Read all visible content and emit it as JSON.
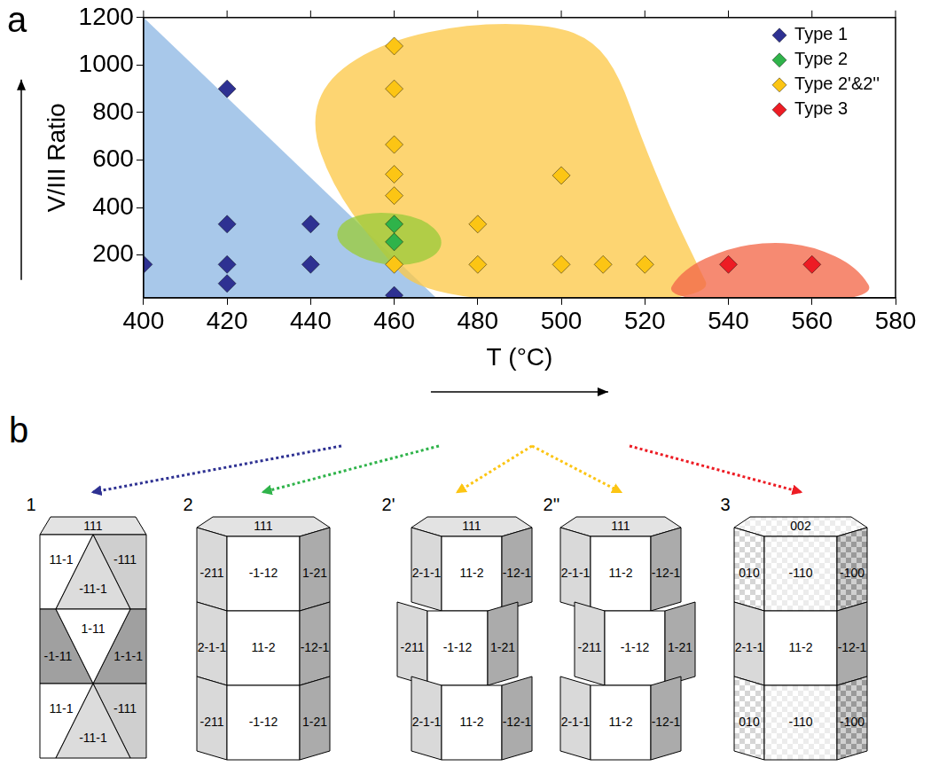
{
  "chart_data": {
    "type": "scatter",
    "panel_label": "a",
    "x_label": "T (°C)",
    "y_label": "V/III Ratio",
    "xlim": [
      400,
      580
    ],
    "xticks": [
      400,
      420,
      440,
      460,
      480,
      500,
      520,
      540,
      560,
      580
    ],
    "ylim": [
      20,
      1200
    ],
    "yticks": [
      200,
      400,
      600,
      800,
      1000,
      1200
    ],
    "grid": false,
    "legend": "upper right",
    "series": [
      {
        "name": "Type 1",
        "color": "#2e3192",
        "marker": "diamond",
        "x": [
          400,
          420,
          420,
          420,
          420,
          440,
          440,
          460
        ],
        "values": [
          160,
          900,
          330,
          160,
          80,
          330,
          160,
          30
        ],
        "region": {
          "shape": "polygon",
          "color": "#8fb9e4",
          "points": [
            [
              400,
              1200
            ],
            [
              470,
              20
            ],
            [
              400,
              20
            ]
          ]
        }
      },
      {
        "name": "Type 2",
        "color": "#2fb34a",
        "marker": "diamond",
        "x": [
          460,
          460
        ],
        "values": [
          330,
          255
        ],
        "region": {
          "shape": "curve",
          "color": "#9ccc3c",
          "points": [
            [
              446,
              300
            ],
            [
              449,
              360
            ],
            [
              457,
              385
            ],
            [
              467,
              355
            ],
            [
              472,
              270
            ],
            [
              470,
              190
            ],
            [
              462,
              150
            ],
            [
              453,
              175
            ],
            [
              447,
              240
            ]
          ]
        }
      },
      {
        "name": "Type 2'&2''",
        "color": "#fcc514",
        "marker": "diamond",
        "x": [
          460,
          460,
          460,
          460,
          460,
          460,
          480,
          480,
          500,
          500,
          510,
          520
        ],
        "values": [
          1080,
          900,
          665,
          540,
          450,
          160,
          330,
          160,
          535,
          160,
          160,
          160
        ],
        "region": {
          "shape": "curve",
          "color": "#fdc94a",
          "points": [
            [
              468,
              0
            ],
            [
              455,
              250
            ],
            [
              445,
              500
            ],
            [
              440,
              750
            ],
            [
              444,
              950
            ],
            [
              458,
              1100
            ],
            [
              478,
              1175
            ],
            [
              498,
              1170
            ],
            [
              508,
              1100
            ],
            [
              514,
              950
            ],
            [
              519,
              700
            ],
            [
              526,
              400
            ],
            [
              532,
              180
            ],
            [
              537,
              0
            ]
          ]
        }
      },
      {
        "name": "Type 3",
        "color": "#ed1c24",
        "marker": "diamond",
        "x": [
          540,
          560
        ],
        "values": [
          160,
          160
        ],
        "region": {
          "shape": "curve",
          "color": "#f4694a",
          "points": [
            [
              524,
              0
            ],
            [
              529,
              140
            ],
            [
              540,
              230
            ],
            [
              550,
              255
            ],
            [
              560,
              240
            ],
            [
              571,
              150
            ],
            [
              576,
              0
            ]
          ]
        }
      }
    ]
  },
  "diagram": {
    "panel_label": "b",
    "items": [
      {
        "label": "1",
        "series": "Type 1",
        "top": "111",
        "segments": [
          [
            "11-1",
            "-11-1",
            "-111"
          ],
          [
            "-1-11",
            "1-11",
            "1-1-1"
          ],
          [
            "11-1",
            "-11-1",
            "-111"
          ]
        ]
      },
      {
        "label": "2",
        "series": "Type 2",
        "top": "111",
        "segments": [
          [
            "-211",
            "-1-12",
            "1-21"
          ],
          [
            "2-1-1",
            "11-2",
            "-12-1"
          ],
          [
            "-211",
            "-1-12",
            "1-21"
          ]
        ]
      },
      {
        "label": "2'",
        "series": "Type 2'&2''",
        "top": "111",
        "segments": [
          [
            "2-1-1",
            "11-2",
            "-12-1"
          ],
          [
            "-211",
            "-1-12",
            "1-21"
          ],
          [
            "2-1-1",
            "11-2",
            "-12-1"
          ]
        ]
      },
      {
        "label": "2''",
        "series": "Type 2'&2''",
        "top": "111",
        "segments": [
          [
            "2-1-1",
            "11-2",
            "-12-1"
          ],
          [
            "-211",
            "-1-12",
            "1-21"
          ],
          [
            "2-1-1",
            "11-2",
            "-12-1"
          ]
        ]
      },
      {
        "label": "3",
        "series": "Type 3",
        "top": "002",
        "segments": [
          [
            "010",
            "-110",
            "-100"
          ],
          [
            "2-1-1",
            "11-2",
            "-12-1"
          ],
          [
            "010",
            "-110",
            "-100"
          ]
        ]
      }
    ]
  }
}
